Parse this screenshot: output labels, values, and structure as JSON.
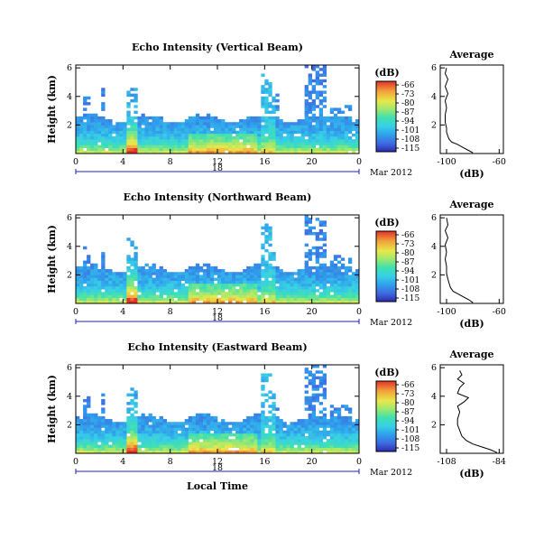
{
  "chart_data": [
    {
      "type": "heatmap",
      "title": "Echo Intensity (Vertical Beam)",
      "ylabel": "Height (km)",
      "yticks": [
        "6",
        "4",
        "2"
      ],
      "xticks": [
        "0",
        "4",
        "8",
        "12",
        "16",
        "20",
        "0"
      ],
      "day": "18",
      "month_label": "Mar 2012",
      "colorbar": {
        "unit": "(dB)",
        "ticks": [
          "-66",
          "-73",
          "-80",
          "-87",
          "-94",
          "-101",
          "-108",
          "-115"
        ]
      },
      "profile": {
        "title": "Average",
        "xlabel": "(dB)",
        "xticks": [
          "-100",
          "-60"
        ],
        "yticks": [
          "6",
          "4",
          "2"
        ],
        "points": [
          [
            -80,
            0.05
          ],
          [
            -84,
            0.25
          ],
          [
            -88,
            0.45
          ],
          [
            -92,
            0.65
          ],
          [
            -96,
            0.8
          ],
          [
            -98,
            1.0
          ],
          [
            -99,
            1.2
          ],
          [
            -100,
            1.5
          ],
          [
            -100,
            1.8
          ],
          [
            -101,
            2.2
          ],
          [
            -101,
            2.7
          ],
          [
            -100,
            3.2
          ],
          [
            -101,
            3.7
          ],
          [
            -99,
            4.2
          ],
          [
            -101,
            4.7
          ],
          [
            -99,
            5.2
          ],
          [
            -101,
            5.6
          ],
          [
            -100,
            6.0
          ]
        ]
      }
    },
    {
      "type": "heatmap",
      "title": "Echo Intensity (Northward Beam)",
      "ylabel": "Height (km)",
      "yticks": [
        "6",
        "4",
        "2"
      ],
      "xticks": [
        "0",
        "4",
        "8",
        "12",
        "16",
        "20",
        "0"
      ],
      "day": "18",
      "month_label": "Mar 2012",
      "colorbar": {
        "unit": "(dB)",
        "ticks": [
          "-66",
          "-73",
          "-80",
          "-87",
          "-94",
          "-101",
          "-108",
          "-115"
        ]
      },
      "profile": {
        "title": "Average",
        "xlabel": "(dB)",
        "xticks": [
          "-100",
          "-60"
        ],
        "yticks": [
          "6",
          "4",
          "2"
        ],
        "points": [
          [
            -80,
            0.05
          ],
          [
            -83,
            0.25
          ],
          [
            -87,
            0.45
          ],
          [
            -91,
            0.65
          ],
          [
            -95,
            0.85
          ],
          [
            -97,
            1.1
          ],
          [
            -98,
            1.4
          ],
          [
            -99,
            1.7
          ],
          [
            -100,
            2.1
          ],
          [
            -100,
            2.6
          ],
          [
            -101,
            3.1
          ],
          [
            -100,
            3.6
          ],
          [
            -101,
            4.1
          ],
          [
            -99,
            4.6
          ],
          [
            -101,
            5.1
          ],
          [
            -99,
            5.5
          ],
          [
            -100,
            6.0
          ]
        ]
      }
    },
    {
      "type": "heatmap",
      "title": "Echo Intensity (Eastward Beam)",
      "ylabel": "Height (km)",
      "yticks": [
        "6",
        "4",
        "2"
      ],
      "xticks": [
        "0",
        "4",
        "8",
        "12",
        "16",
        "20",
        "0"
      ],
      "day": "18",
      "month_label": "Mar 2012",
      "xlabel": "Local Time",
      "colorbar": {
        "unit": "(dB)",
        "ticks": [
          "-66",
          "-73",
          "-80",
          "-87",
          "-94",
          "-101",
          "-108",
          "-115"
        ]
      },
      "profile": {
        "title": "Average",
        "xlabel": "(dB)",
        "xticks": [
          "-108",
          "-84"
        ],
        "yticks": [
          "6",
          "4",
          "2"
        ],
        "points": [
          [
            -85,
            0.05
          ],
          [
            -88,
            0.25
          ],
          [
            -92,
            0.45
          ],
          [
            -96,
            0.65
          ],
          [
            -99,
            0.9
          ],
          [
            -101,
            1.2
          ],
          [
            -102,
            1.6
          ],
          [
            -103,
            2.0
          ],
          [
            -103,
            2.4
          ],
          [
            -102,
            2.9
          ],
          [
            -103,
            3.3
          ],
          [
            -100,
            3.6
          ],
          [
            -98,
            3.9
          ],
          [
            -103,
            4.2
          ],
          [
            -102,
            4.6
          ],
          [
            -100,
            4.9
          ],
          [
            -103,
            5.2
          ],
          [
            -101,
            5.5
          ],
          [
            -102,
            5.8
          ]
        ]
      }
    }
  ]
}
